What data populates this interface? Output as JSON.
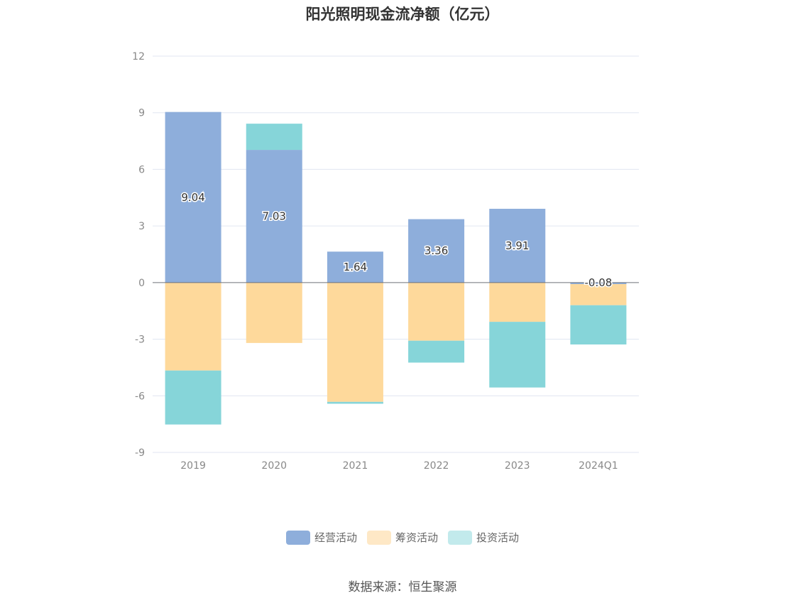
{
  "chart_data": {
    "type": "bar",
    "stacked": true,
    "title": "阳光照明现金流净额（亿元）",
    "categories": [
      "2019",
      "2020",
      "2021",
      "2022",
      "2023",
      "2024Q1"
    ],
    "series": [
      {
        "name": "经营活动",
        "color": "#8eaedb",
        "values": [
          9.04,
          7.03,
          1.64,
          3.36,
          3.91,
          -0.08
        ],
        "show_labels": true
      },
      {
        "name": "筹资活动",
        "color": "#fed99b",
        "values": [
          -4.66,
          -3.2,
          -6.32,
          -3.08,
          -2.08,
          -1.12
        ],
        "show_labels": false
      },
      {
        "name": "投资活动",
        "color": "#86d5d9",
        "values": [
          -2.86,
          1.39,
          -0.1,
          -1.16,
          -3.48,
          -2.08
        ],
        "show_labels": false
      }
    ],
    "ylim": [
      -9,
      12
    ],
    "yticks": [
      -9,
      -6,
      -3,
      0,
      3,
      6,
      9,
      12
    ],
    "grid": true,
    "legend_position": "bottom"
  },
  "legend": [
    {
      "label": "经营活动",
      "color": "#8eaedb"
    },
    {
      "label": "筹资活动",
      "color": "#fee8c6"
    },
    {
      "label": "投资活动",
      "color": "#c2eaec"
    }
  ],
  "source": "数据来源：恒生聚源"
}
